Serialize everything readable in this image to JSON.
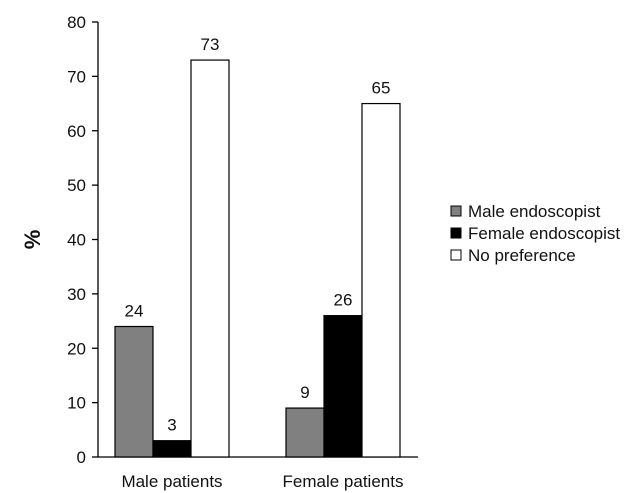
{
  "chart_data": {
    "type": "bar",
    "title": "",
    "xlabel": "",
    "ylabel": "%",
    "ylim": [
      0,
      80
    ],
    "yticks": [
      0,
      10,
      20,
      30,
      40,
      50,
      60,
      70,
      80
    ],
    "grid": false,
    "legend_position": "right",
    "categories": [
      "Male patients",
      "Female patients"
    ],
    "series": [
      {
        "name": "Male endoscopist",
        "values": [
          24,
          9
        ],
        "color": "#808080"
      },
      {
        "name": "Female endoscopist",
        "values": [
          3,
          26
        ],
        "color": "#000000"
      },
      {
        "name": "No preference",
        "values": [
          73,
          65
        ],
        "color": "#ffffff"
      }
    ]
  }
}
